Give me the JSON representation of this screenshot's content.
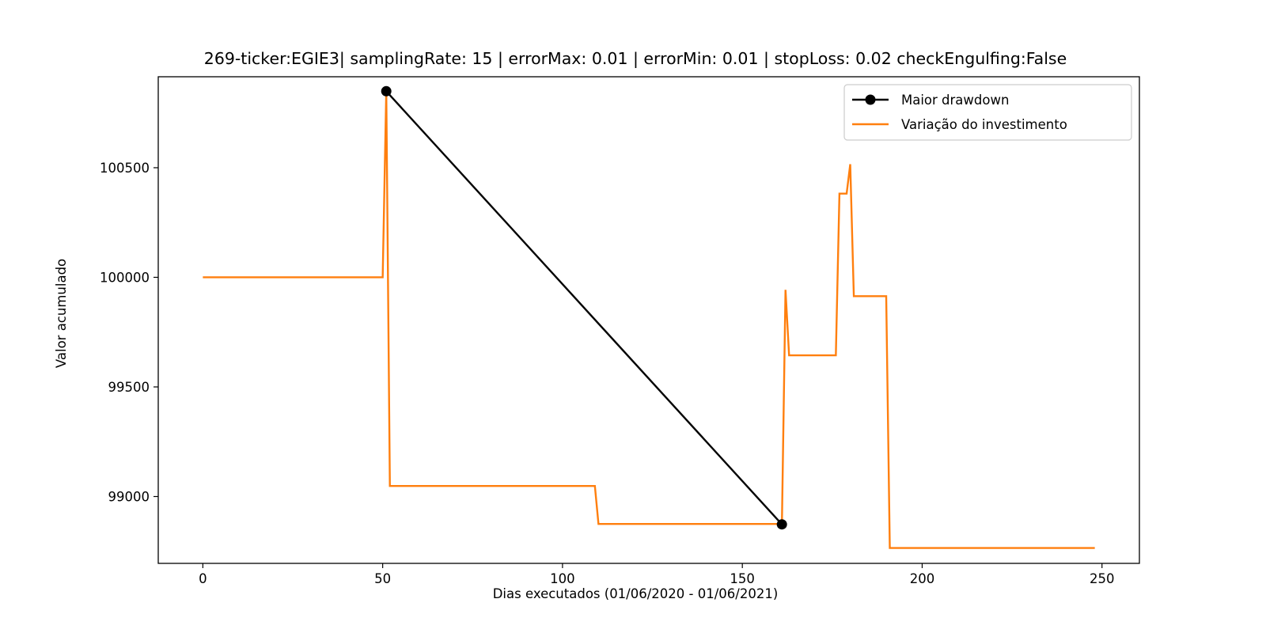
{
  "chart_data": {
    "type": "line",
    "title": "269-ticker:EGIE3| samplingRate: 15 | errorMax: 0.01 | errorMin: 0.01 | stopLoss: 0.02 checkEngulfing:False",
    "xlabel": "Dias executados (01/06/2020 - 01/06/2021)",
    "ylabel": "Valor acumulado",
    "xlim": [
      -12.4,
      260.4
    ],
    "ylim": [
      98695,
      100915
    ],
    "xticks": [
      0,
      50,
      100,
      150,
      200,
      250
    ],
    "yticks": [
      99000,
      99500,
      100000,
      100500
    ],
    "grid": false,
    "legend_position": "top-right",
    "series": [
      {
        "name": "Maior drawdown",
        "color": "#000000",
        "marker": "circle",
        "x": [
          51,
          161
        ],
        "y": [
          100849,
          98873
        ]
      },
      {
        "name": "Variação do investimento",
        "color": "#ff7f0e",
        "x": [
          0,
          50,
          51,
          52,
          109,
          110,
          160,
          161,
          162,
          163,
          176,
          177,
          179,
          180,
          181,
          190,
          191,
          248
        ],
        "y": [
          100000,
          100000,
          100849,
          99048,
          99048,
          98875,
          98875,
          98873,
          99943,
          99644,
          99644,
          100382,
          100382,
          100516,
          99914,
          99914,
          98765,
          98765
        ]
      }
    ]
  }
}
